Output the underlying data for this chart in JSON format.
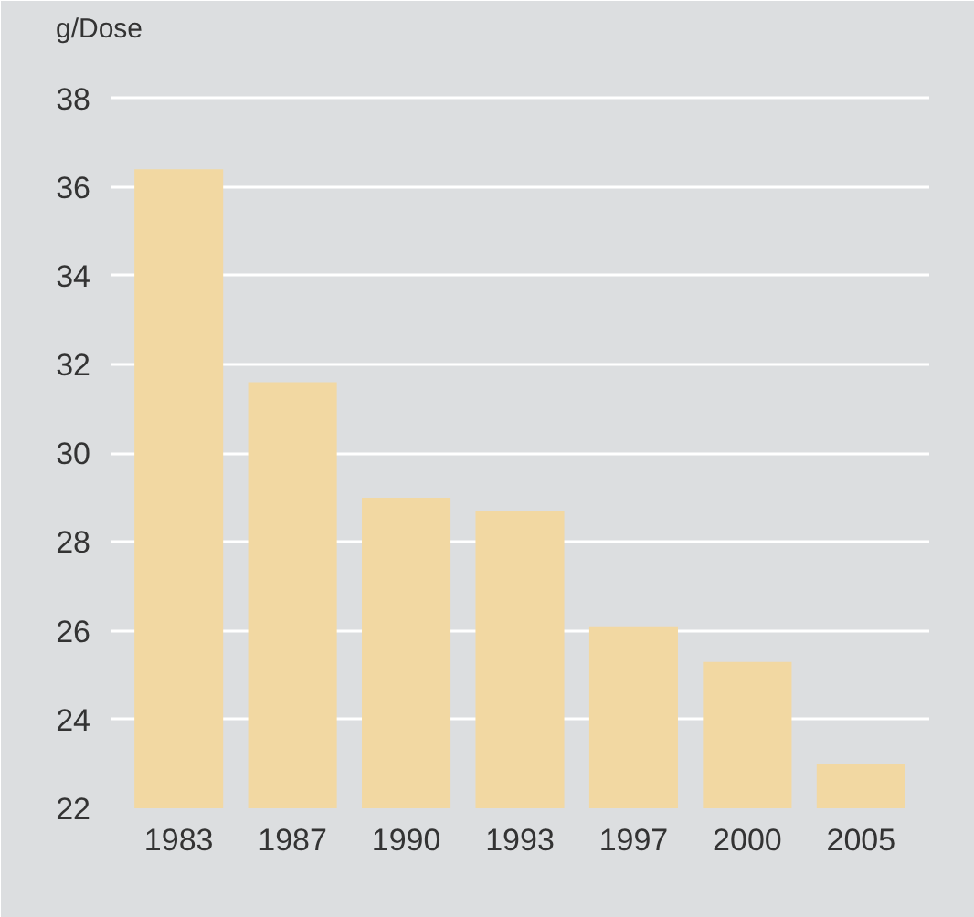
{
  "chart_data": {
    "type": "bar",
    "ylabel": "g/Dose",
    "categories": [
      "1983",
      "1987",
      "1990",
      "1993",
      "1997",
      "2000",
      "2005"
    ],
    "values": [
      36.4,
      31.6,
      29.0,
      28.7,
      26.1,
      25.3,
      23.0
    ],
    "color": "#f2d8a2",
    "ylim": [
      22,
      39
    ],
    "yticks": [
      22,
      24,
      26,
      28,
      30,
      32,
      34,
      36,
      38
    ],
    "grid": "y"
  }
}
